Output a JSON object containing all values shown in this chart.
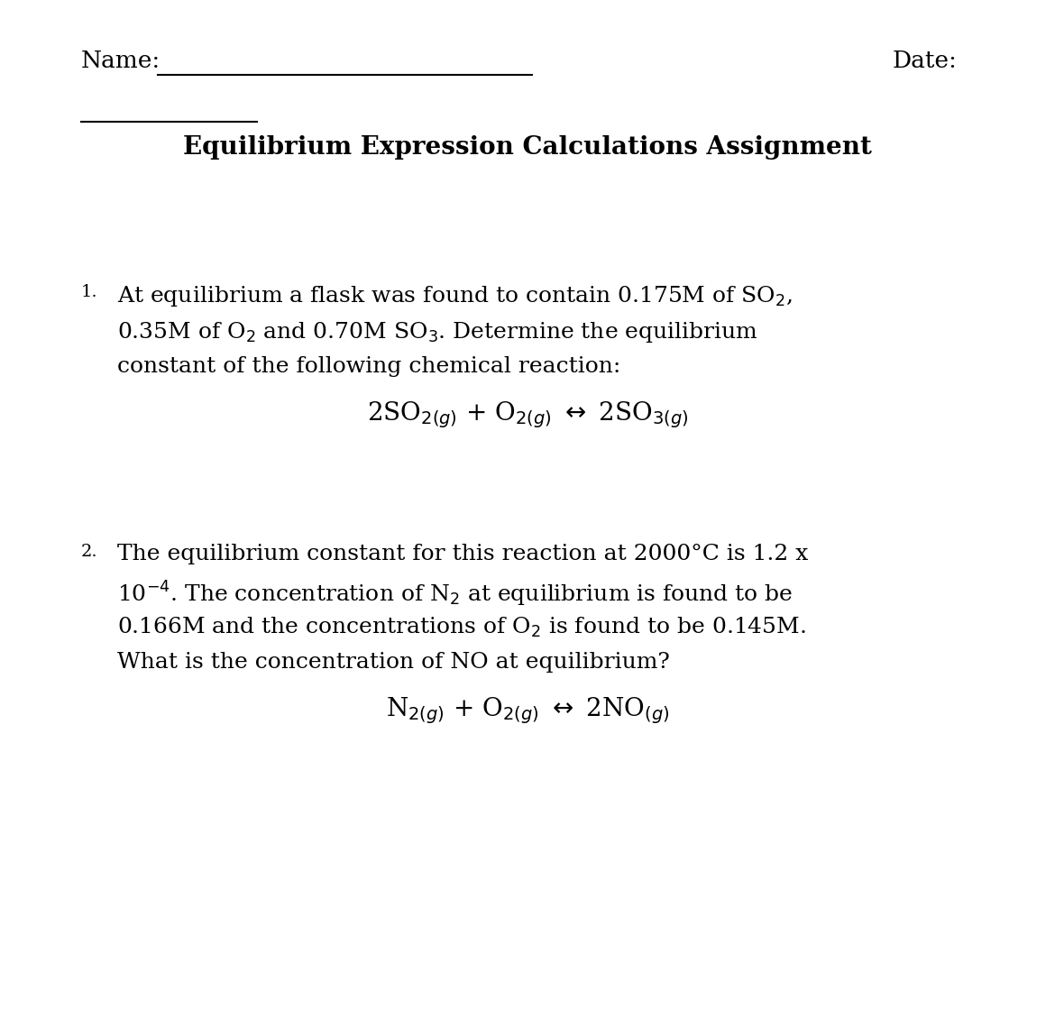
{
  "bg_color": "#ffffff",
  "text_color": "#000000",
  "name_label": "Name:",
  "date_label": "Date:",
  "title": "Equilibrium Expression Calculations Assignment",
  "main_fontsize": 18,
  "title_fontsize": 20,
  "eq_fontsize": 20,
  "num_fontsize": 14
}
